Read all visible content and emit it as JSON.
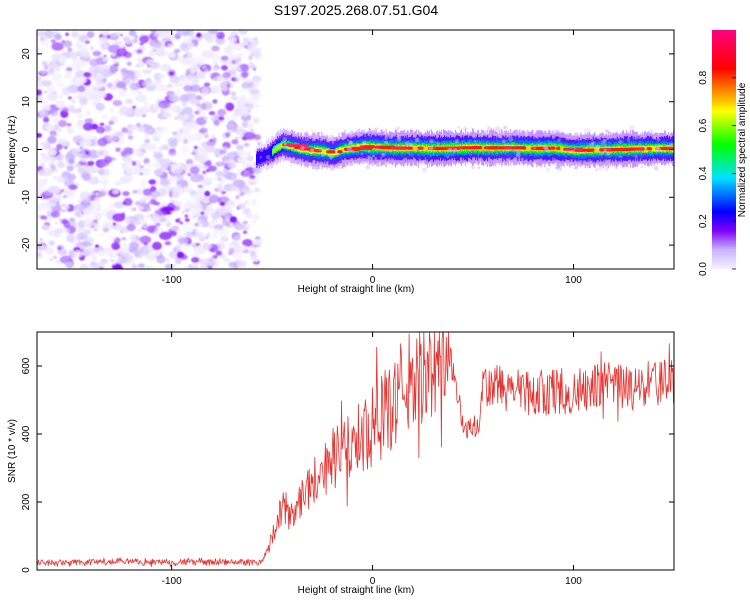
{
  "figure_title": "S197.2025.268.07.51.G04",
  "chart_data": [
    {
      "type": "heatmap",
      "title": "",
      "xlabel": "Height of straight line (km)",
      "ylabel": "Frequency (Hz)",
      "xlim": [
        -167,
        150
      ],
      "ylim": [
        -25,
        25
      ],
      "xticks": [
        -100,
        0,
        100
      ],
      "yticks": [
        -20,
        -10,
        0,
        10,
        20
      ],
      "colorbar": {
        "label": "Normalized spectral amplitude",
        "range": [
          0,
          1
        ],
        "ticks": [
          0.0,
          0.2,
          0.4,
          0.6,
          0.8
        ],
        "colors": [
          "#f5f0ff",
          "#c8b4ff",
          "#8000ff",
          "#0000ff",
          "#00e0ff",
          "#00ff00",
          "#ffff00",
          "#ff0000",
          "#ff0080"
        ]
      },
      "noise_region": {
        "x": [
          -167,
          -57
        ],
        "freq": [
          -25,
          25
        ],
        "amplitude": [
          0.0,
          0.25
        ]
      },
      "signal_track": {
        "x": [
          -58,
          -55,
          -52,
          -50,
          -48,
          -45,
          -42,
          -40,
          -35,
          -30,
          -25,
          -20,
          -18,
          -15,
          -10,
          -5,
          0,
          10,
          20,
          30,
          40,
          50,
          60,
          70,
          80,
          90,
          100,
          110,
          120,
          130,
          140,
          150
        ],
        "freq": [
          -2.0,
          -1.5,
          -1.0,
          -0.5,
          0.3,
          1.0,
          0.8,
          0.5,
          0.0,
          -0.2,
          -0.3,
          -0.8,
          -0.5,
          0.0,
          0.3,
          0.6,
          0.5,
          0.3,
          0.3,
          0.2,
          0.3,
          0.4,
          0.3,
          0.4,
          0.2,
          0.3,
          -0.2,
          -0.1,
          0.0,
          0.1,
          0.2,
          0.2
        ],
        "amplitude": [
          0.45,
          0.5,
          0.5,
          0.6,
          0.7,
          0.75,
          0.8,
          0.85,
          0.85,
          0.9,
          0.9,
          0.8,
          0.85,
          0.9,
          0.9,
          0.9,
          0.95,
          0.95,
          0.95,
          0.95,
          0.95,
          0.95,
          0.95,
          0.9,
          0.95,
          0.95,
          0.9,
          0.95,
          0.95,
          0.95,
          0.9,
          0.9
        ]
      }
    },
    {
      "type": "line",
      "title": "",
      "xlabel": "Height of straight line (km)",
      "ylabel": "SNR (10 * v/v)",
      "xlim": [
        -167,
        150
      ],
      "ylim": [
        0,
        700
      ],
      "xticks": [
        -100,
        0,
        100
      ],
      "yticks": [
        0,
        200,
        400,
        600
      ],
      "line_color": "#e8322e",
      "series": [
        {
          "name": "SNR",
          "x": [
            -167,
            -150,
            -130,
            -110,
            -90,
            -70,
            -55,
            -52,
            -48,
            -45,
            -40,
            -35,
            -30,
            -25,
            -20,
            -15,
            -10,
            -5,
            0,
            5,
            10,
            15,
            20,
            25,
            30,
            35,
            38,
            40,
            42,
            45,
            50,
            53,
            55,
            60,
            70,
            80,
            90,
            100,
            110,
            120,
            130,
            140,
            150
          ],
          "y": [
            20,
            22,
            24,
            22,
            24,
            23,
            24,
            60,
            140,
            180,
            180,
            220,
            260,
            290,
            330,
            340,
            370,
            400,
            420,
            450,
            490,
            530,
            560,
            580,
            600,
            620,
            640,
            590,
            530,
            420,
            420,
            420,
            530,
            540,
            530,
            520,
            530,
            520,
            540,
            540,
            530,
            550,
            550
          ]
        }
      ]
    }
  ]
}
